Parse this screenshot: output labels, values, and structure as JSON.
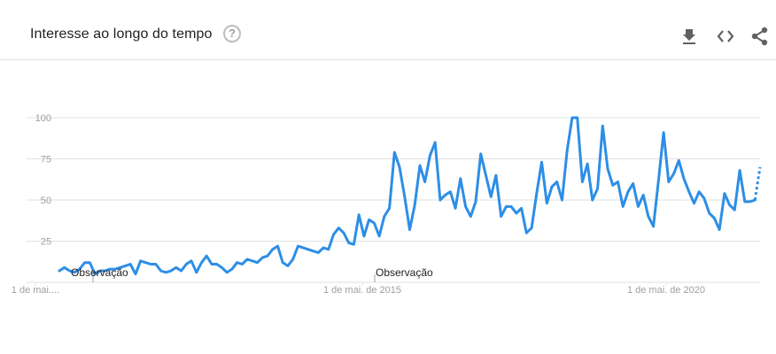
{
  "header": {
    "title": "Interesse ao longo do tempo",
    "help_icon": "help-circle-icon",
    "download_icon": "download-icon",
    "embed_icon": "code-embed-icon",
    "share_icon": "share-icon"
  },
  "colors": {
    "line": "#2d8ee6",
    "grid": "#e0e0e0",
    "tick_text": "#9e9e9e",
    "annotation_text": "#202124",
    "title_text": "#202124",
    "icon": "#616161"
  },
  "chart_data": {
    "type": "line",
    "title": "Interesse ao longo do tempo",
    "xlabel": "",
    "ylabel": "",
    "ylim": [
      0,
      100
    ],
    "yticks": [
      25,
      50,
      75,
      100
    ],
    "grid": true,
    "xtick_labels": [
      "1 de mai....",
      "1 de mai. de 2015",
      "1 de mai. de 2020"
    ],
    "annotations": [
      "Observação",
      "Observação"
    ],
    "series": [
      {
        "values": [
          7,
          9,
          7,
          6,
          8,
          12,
          12,
          5,
          7,
          7,
          8,
          8,
          9,
          10,
          11,
          5,
          13,
          12,
          11,
          11,
          7,
          6,
          7,
          9,
          7,
          11,
          13,
          6,
          12,
          16,
          11,
          11,
          9,
          6,
          8,
          12,
          11,
          14,
          13,
          12,
          15,
          16,
          20,
          22,
          12,
          10,
          14,
          22,
          21,
          20,
          19,
          18,
          21,
          20,
          29,
          33,
          30,
          24,
          23,
          41,
          28,
          38,
          36,
          28,
          40,
          45,
          79,
          70,
          52,
          32,
          47,
          71,
          61,
          77,
          85,
          50,
          53,
          55,
          45,
          63,
          46,
          40,
          49,
          78,
          65,
          52,
          65,
          40,
          46,
          46,
          42,
          45,
          30,
          33,
          54,
          73,
          48,
          58,
          61,
          50,
          80,
          100,
          100,
          61,
          72,
          50,
          57,
          95,
          69,
          59,
          61,
          46,
          55,
          60,
          46,
          53,
          40,
          34,
          62,
          91,
          61,
          66,
          74,
          63,
          55,
          48,
          55,
          51,
          42,
          39,
          32,
          54,
          47,
          44,
          68,
          49,
          49,
          50,
          70
        ],
        "partial_from_index": 137
      }
    ]
  }
}
